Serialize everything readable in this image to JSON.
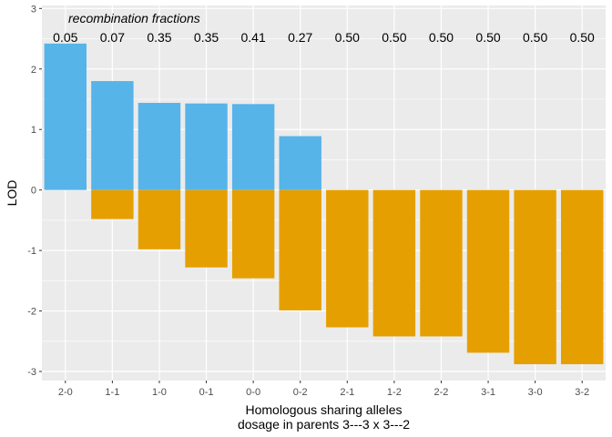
{
  "chart_data": {
    "type": "bar",
    "categories": [
      "2-0",
      "1-1",
      "1-0",
      "0-1",
      "0-0",
      "0-2",
      "2-1",
      "1-2",
      "2-2",
      "3-1",
      "3-0",
      "3-2"
    ],
    "series": [
      {
        "color": "#56B4E9",
        "values": [
          2.42,
          1.8,
          1.44,
          1.43,
          1.42,
          0.89,
          0,
          0,
          0,
          0,
          0,
          0
        ]
      },
      {
        "color": "#E69F00",
        "values": [
          0,
          -0.48,
          -0.98,
          -1.28,
          -1.46,
          -1.99,
          -2.27,
          -2.42,
          -2.42,
          -2.69,
          -2.88,
          -2.88
        ]
      }
    ],
    "recombination_fractions": [
      "0.05",
      "0.07",
      "0.35",
      "0.35",
      "0.41",
      "0.27",
      "0.50",
      "0.50",
      "0.50",
      "0.50",
      "0.50",
      "0.50"
    ],
    "annotation": "recombination fractions",
    "ylabel": "LOD",
    "xlabel": "Homologous sharing alleles",
    "xlabel2": "dosage in parents  3---3  x  3---2",
    "ylim": [
      -3.15,
      3.05
    ],
    "yticks": [
      -3,
      -2,
      -1,
      0,
      1,
      2,
      3
    ],
    "grid": true,
    "panel_background": "#EBEBEB"
  }
}
